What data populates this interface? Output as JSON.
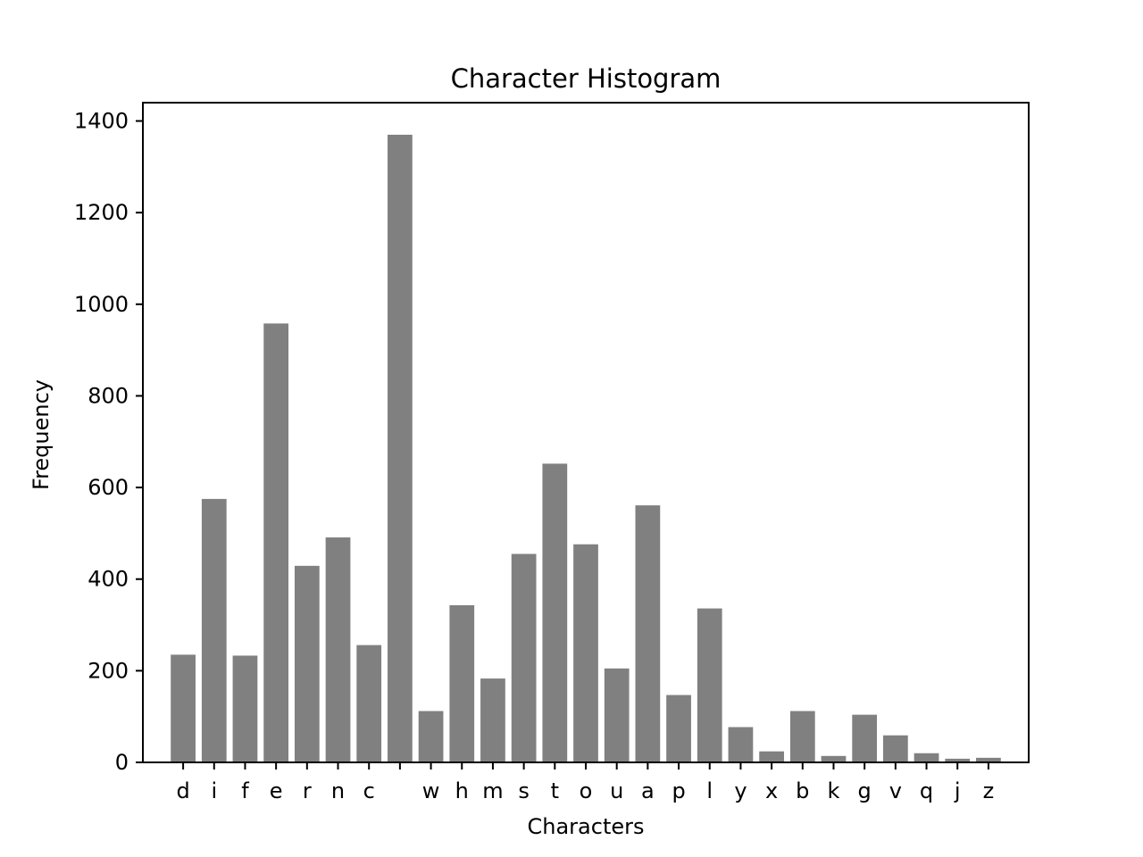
{
  "chart_data": {
    "type": "bar",
    "title": "Character Histogram",
    "xlabel": "Characters",
    "ylabel": "Frequency",
    "categories": [
      "d",
      "i",
      "f",
      "e",
      "r",
      "n",
      "c",
      " ",
      "w",
      "h",
      "m",
      "s",
      "t",
      "o",
      "u",
      "a",
      "p",
      "l",
      "y",
      "x",
      "b",
      "k",
      "g",
      "v",
      "q",
      "j",
      "z"
    ],
    "values": [
      235,
      575,
      233,
      958,
      429,
      491,
      256,
      1370,
      112,
      343,
      183,
      455,
      652,
      476,
      205,
      561,
      147,
      336,
      77,
      24,
      112,
      14,
      104,
      59,
      20,
      8,
      10
    ],
    "ylim": [
      0,
      1440
    ],
    "yticks": [
      0,
      200,
      400,
      600,
      800,
      1000,
      1200,
      1400
    ],
    "bar_color": "#808080",
    "grid": false
  }
}
